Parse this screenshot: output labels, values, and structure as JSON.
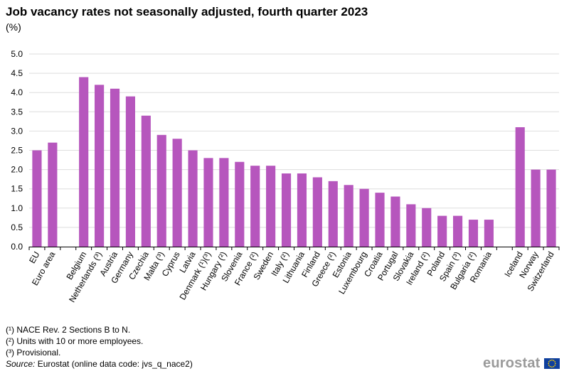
{
  "title": "Job vacancy rates not seasonally adjusted, fourth quarter 2023",
  "unit": "(%)",
  "chart_data": {
    "type": "bar",
    "title": "Job vacancy rates not seasonally adjusted, fourth quarter 2023",
    "ylabel": "(%)",
    "xlabel": "",
    "ylim": [
      0,
      5
    ],
    "yticks": [
      "0.0",
      "0.5",
      "1.0",
      "1.5",
      "2.0",
      "2.5",
      "3.0",
      "3.5",
      "4.0",
      "4.5",
      "5.0"
    ],
    "grid": true,
    "bar_color": "#b656bd",
    "categories": [
      "EU",
      "Euro area",
      "",
      "Belgium",
      "Netherlands (³)",
      "Austria",
      "Germany",
      "Czechia",
      "Malta (³)",
      "Cyprus",
      "Latvia",
      "Denmark (¹)(³)",
      "Hungary (²)",
      "Slovenia",
      "France (²)",
      "Sweden",
      "Italy (²)",
      "Lithuania",
      "Finland",
      "Greece (²)",
      "Estonia",
      "Luxembourg",
      "Croatia",
      "Portugal",
      "Slovakia",
      "Ireland (²)",
      "Poland",
      "Spain (³)",
      "Bulgaria (²)",
      "Romania",
      "",
      "Iceland",
      "Norway",
      "Switzerland"
    ],
    "values": [
      2.5,
      2.7,
      null,
      4.4,
      4.2,
      4.1,
      3.9,
      3.4,
      2.9,
      2.8,
      2.5,
      2.3,
      2.3,
      2.2,
      2.1,
      2.1,
      1.9,
      1.9,
      1.8,
      1.7,
      1.6,
      1.5,
      1.4,
      1.3,
      1.1,
      1.0,
      0.8,
      0.8,
      0.7,
      0.7,
      null,
      3.1,
      2.0,
      2.0
    ]
  },
  "notes": [
    "(¹) NACE Rev. 2 Sections B to N.",
    "(²) Units with 10 or more employees.",
    "(³) Provisional."
  ],
  "source_label": "Source:",
  "source_text": " Eurostat (online data code: jvs_q_nace2)",
  "logo_text": "eurostat"
}
